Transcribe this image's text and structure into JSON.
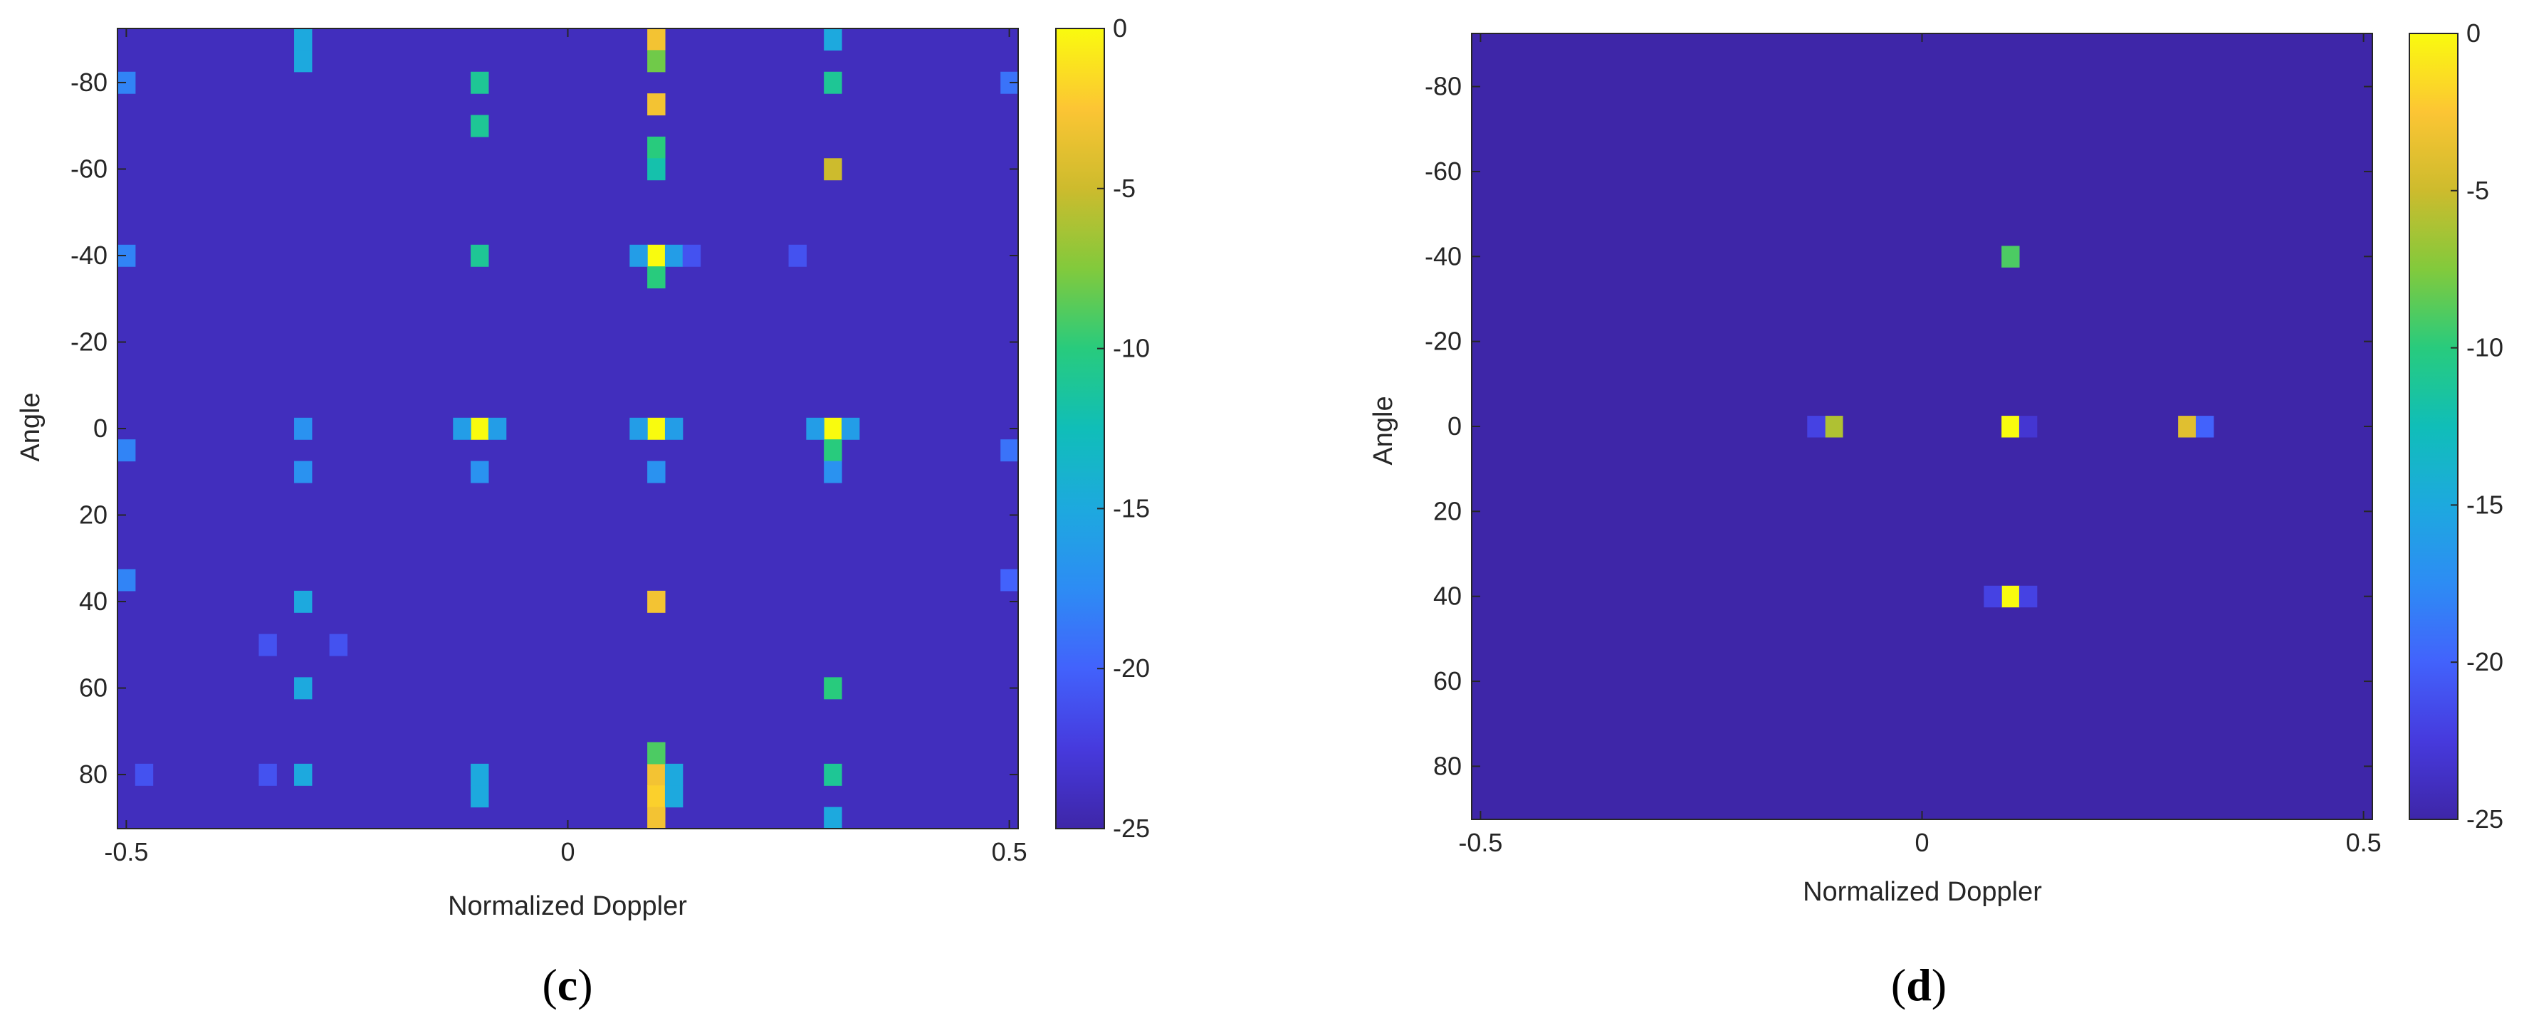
{
  "chart_data": [
    {
      "type": "heatmap",
      "panel": "c",
      "caption": "(c)",
      "xlabel": "Normalized Doppler",
      "ylabel": "Angle",
      "xlim": [
        -0.51,
        0.51
      ],
      "ylim": [
        -92.5,
        92.5
      ],
      "y_reversed": true,
      "x_ticks": [
        -0.5,
        0,
        0.5
      ],
      "x_tick_labels": [
        "-0.5",
        "0",
        "0.5"
      ],
      "y_ticks": [
        -80,
        -60,
        -40,
        -20,
        0,
        20,
        40,
        60,
        80
      ],
      "y_tick_labels": [
        "-80",
        "-60",
        "-40",
        "-20",
        "0",
        "20",
        "40",
        "60",
        "80"
      ],
      "colorbar": {
        "min": -25,
        "max": 0,
        "ticks": [
          0,
          -5,
          -10,
          -15,
          -20,
          -25
        ],
        "tick_labels": [
          "0",
          "-5",
          "-10",
          "-15",
          "-20",
          "-25"
        ],
        "colormap": "parula"
      },
      "background_value": -24,
      "cells": [
        [
          0.1,
          0,
          0
        ],
        [
          0.1,
          -40,
          0
        ],
        [
          0.1,
          40,
          -3
        ],
        [
          -0.1,
          0,
          0
        ],
        [
          0.3,
          0,
          0
        ],
        [
          0.1,
          -90,
          -3
        ],
        [
          0.1,
          -75,
          -3
        ],
        [
          0.1,
          80,
          -3
        ],
        [
          0.1,
          85,
          -2
        ],
        [
          0.1,
          90,
          -3
        ],
        [
          0.3,
          -60,
          -5
        ],
        [
          0.1,
          -85,
          -8
        ],
        [
          0.1,
          -65,
          -10
        ],
        [
          0.1,
          -35,
          -10
        ],
        [
          0.1,
          75,
          -9
        ],
        [
          0.3,
          60,
          -10
        ],
        [
          0.3,
          80,
          -11
        ],
        [
          0.3,
          -80,
          -11
        ],
        [
          -0.1,
          -80,
          -11
        ],
        [
          -0.1,
          -70,
          -11
        ],
        [
          -0.1,
          -40,
          -11
        ],
        [
          0.3,
          5,
          -10
        ],
        [
          0.1,
          -60,
          -12
        ],
        [
          -0.3,
          -90,
          -15
        ],
        [
          -0.3,
          -85,
          -15
        ],
        [
          -0.3,
          40,
          -15
        ],
        [
          -0.3,
          60,
          -15
        ],
        [
          -0.3,
          80,
          -15
        ],
        [
          -0.1,
          80,
          -15
        ],
        [
          -0.1,
          85,
          -15
        ],
        [
          0.3,
          -90,
          -15
        ],
        [
          0.3,
          90,
          -15
        ],
        [
          0.12,
          80,
          -15
        ],
        [
          0.12,
          85,
          -15
        ],
        [
          0.08,
          -40,
          -16
        ],
        [
          0.12,
          -40,
          -16
        ],
        [
          0.08,
          0,
          -16
        ],
        [
          0.12,
          0,
          -16
        ],
        [
          -0.12,
          0,
          -16
        ],
        [
          -0.08,
          0,
          -16
        ],
        [
          0.28,
          0,
          -16
        ],
        [
          0.32,
          0,
          -16
        ],
        [
          -0.3,
          0,
          -17
        ],
        [
          -0.3,
          10,
          -17
        ],
        [
          -0.1,
          10,
          -17
        ],
        [
          0.3,
          10,
          -17
        ],
        [
          0.1,
          10,
          -17
        ],
        [
          -0.5,
          5,
          -18
        ],
        [
          -0.5,
          -40,
          -18
        ],
        [
          -0.5,
          -80,
          -18
        ],
        [
          -0.5,
          35,
          -18
        ],
        [
          0.5,
          -80,
          -19
        ],
        [
          0.5,
          5,
          -19
        ],
        [
          0.5,
          35,
          -20
        ],
        [
          0.14,
          -40,
          -21
        ],
        [
          -0.34,
          50,
          -21
        ],
        [
          -0.26,
          50,
          -21
        ],
        [
          0.26,
          -40,
          -21
        ],
        [
          -0.34,
          80,
          -21
        ],
        [
          -0.48,
          80,
          -21
        ]
      ]
    },
    {
      "type": "heatmap",
      "panel": "d",
      "caption": "(d)",
      "xlabel": "Normalized Doppler",
      "ylabel": "Angle",
      "xlim": [
        -0.51,
        0.51
      ],
      "ylim": [
        -92.5,
        92.5
      ],
      "y_reversed": true,
      "x_ticks": [
        -0.5,
        0,
        0.5
      ],
      "x_tick_labels": [
        "-0.5",
        "0",
        "0.5"
      ],
      "y_ticks": [
        -80,
        -60,
        -40,
        -20,
        0,
        20,
        40,
        60,
        80
      ],
      "y_tick_labels": [
        "-80",
        "-60",
        "-40",
        "-20",
        "0",
        "20",
        "40",
        "60",
        "80"
      ],
      "colorbar": {
        "min": -25,
        "max": 0,
        "ticks": [
          0,
          -5,
          -10,
          -15,
          -20,
          -25
        ],
        "tick_labels": [
          "0",
          "-5",
          "-10",
          "-15",
          "-20",
          "-25"
        ],
        "colormap": "parula"
      },
      "background_value": -25,
      "cells": [
        [
          0.1,
          0,
          0
        ],
        [
          0.1,
          40,
          0
        ],
        [
          0.1,
          -40,
          -9
        ],
        [
          -0.1,
          0,
          -6
        ],
        [
          0.3,
          0,
          -4
        ],
        [
          -0.12,
          0,
          -22
        ],
        [
          0.12,
          0,
          -23
        ],
        [
          0.08,
          40,
          -22
        ],
        [
          0.12,
          40,
          -22
        ],
        [
          0.32,
          0,
          -20
        ]
      ]
    }
  ]
}
